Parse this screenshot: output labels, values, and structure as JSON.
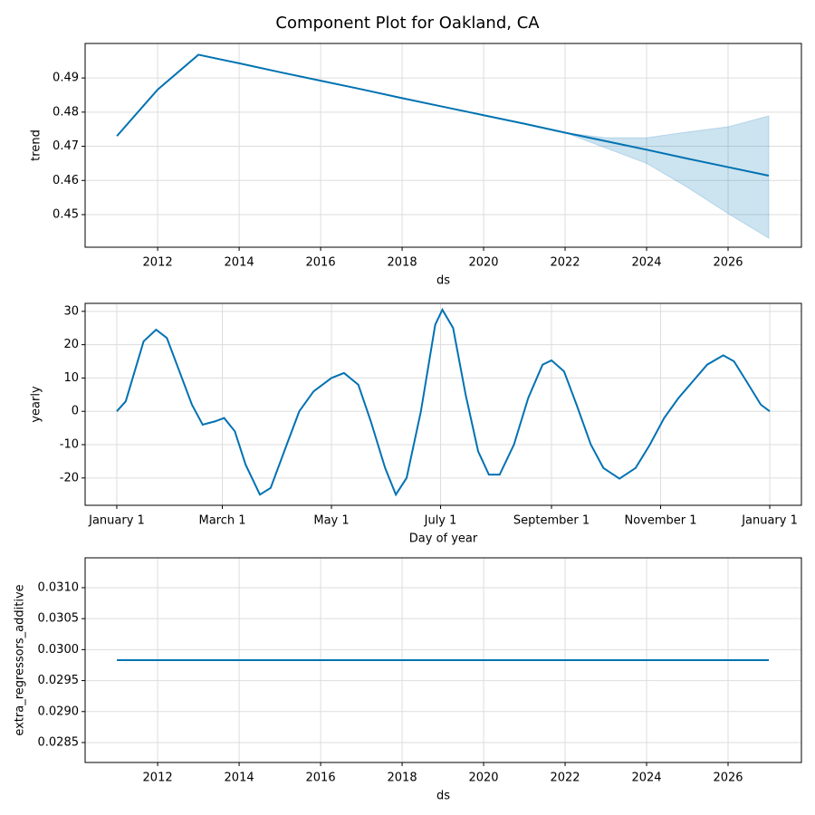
{
  "title": "Component Plot for Oakland, CA",
  "chart_data": [
    {
      "type": "line",
      "xlabel": "ds",
      "ylabel": "trend",
      "x": [
        2011,
        2012,
        2013,
        2014,
        2015,
        2016,
        2017,
        2018,
        2019,
        2020,
        2021,
        2022,
        2023,
        2024,
        2025,
        2026,
        2027
      ],
      "series": [
        {
          "color": "#0072B2",
          "values": [
            0.473,
            0.4866,
            0.4968,
            0.4943,
            0.4917,
            0.4892,
            0.4867,
            0.4841,
            0.4816,
            0.4791,
            0.4766,
            0.474,
            0.4715,
            0.469,
            0.4664,
            0.4639,
            0.4614
          ]
        }
      ],
      "band": {
        "color": "#0072B2",
        "x": [
          2022,
          2023,
          2024,
          2025,
          2026,
          2027
        ],
        "upper": [
          0.474,
          0.4725,
          0.4725,
          0.4742,
          0.4757,
          0.4789
        ],
        "lower": [
          0.474,
          0.4695,
          0.465,
          0.458,
          0.4503,
          0.4431
        ]
      },
      "xlim": [
        2010.22,
        2027.8
      ],
      "xticks": [
        2012,
        2014,
        2016,
        2018,
        2020,
        2022,
        2024,
        2026
      ],
      "ylim": [
        0.44046,
        0.5001
      ],
      "yticks": [
        0.45,
        0.46,
        0.47,
        0.48,
        0.49
      ],
      "grid": true
    },
    {
      "type": "line",
      "xlabel": "Day of year",
      "ylabel": "yearly",
      "x": [
        0,
        5,
        10,
        15,
        22,
        28,
        35,
        42,
        48,
        55,
        60,
        66,
        72,
        80,
        86,
        95,
        102,
        110,
        120,
        127,
        135,
        142,
        150,
        156,
        162,
        170,
        178,
        182,
        188,
        195,
        202,
        208,
        214,
        222,
        230,
        238,
        243,
        250,
        257,
        265,
        272,
        281,
        290,
        298,
        306,
        314,
        322,
        330,
        339,
        345,
        352,
        360,
        365
      ],
      "series": [
        {
          "color": "#0072B2",
          "values": [
            0,
            3,
            12,
            21,
            24.5,
            22,
            12,
            2,
            -4,
            -3,
            -2,
            -6,
            -16,
            -25,
            -23,
            -10,
            0,
            6,
            10,
            11.5,
            8,
            -3,
            -17,
            -25,
            -20,
            0,
            26,
            30.5,
            25,
            5,
            -12,
            -19,
            -19,
            -10,
            4,
            14,
            15.3,
            12,
            2,
            -10,
            -17,
            -20.2,
            -17,
            -10,
            -2,
            4,
            9,
            14,
            16.8,
            15,
            9,
            2,
            0
          ]
        }
      ],
      "xlim": [
        -17.7,
        382.7
      ],
      "xticks": [
        {
          "value": 0,
          "label": "January 1"
        },
        {
          "value": 59,
          "label": "March 1"
        },
        {
          "value": 120,
          "label": "May 1"
        },
        {
          "value": 181,
          "label": "July 1"
        },
        {
          "value": 243,
          "label": "September 1"
        },
        {
          "value": 304,
          "label": "November 1"
        },
        {
          "value": 365,
          "label": "January 1"
        }
      ],
      "ylim": [
        -28.2,
        32.4
      ],
      "yticks": [
        -20,
        -10,
        0,
        10,
        20,
        30
      ],
      "grid": true
    },
    {
      "type": "line",
      "xlabel": "ds",
      "ylabel": "extra_regressors_additive",
      "x": [
        2011,
        2027
      ],
      "series": [
        {
          "color": "#0072B2",
          "values": [
            0.02983,
            0.02983
          ]
        }
      ],
      "xlim": [
        2010.22,
        2027.8
      ],
      "xticks": [
        2012,
        2014,
        2016,
        2018,
        2020,
        2022,
        2024,
        2026
      ],
      "ylim": [
        0.028178,
        0.031482
      ],
      "yticks": [
        0.0285,
        {
          "value": 0.029,
          "label": "0.0290"
        },
        0.0295,
        {
          "value": 0.03,
          "label": "0.0300"
        },
        0.0305,
        {
          "value": 0.031,
          "label": "0.0310"
        }
      ],
      "grid": true
    }
  ]
}
